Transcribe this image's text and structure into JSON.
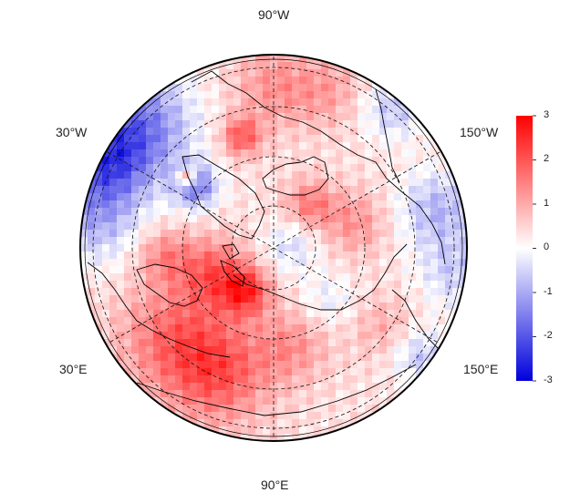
{
  "map": {
    "projection": "north polar stereographic",
    "longitude_labels": {
      "top": "90°W",
      "upper_left": "30°W",
      "upper_right": "150°W",
      "lower_left": "30°E",
      "lower_right": "150°E",
      "bottom": "90°E"
    },
    "graticule": "dashed",
    "anomaly_regions": [
      {
        "region": "Labrador Sea / Baffin Bay",
        "sign": "negative",
        "intensity": "strong"
      },
      {
        "region": "North Atlantic east of Greenland",
        "sign": "negative",
        "intensity": "moderate"
      },
      {
        "region": "Northwest Greenland coast",
        "sign": "positive",
        "intensity": "strong"
      },
      {
        "region": "Barents-Kara Sea",
        "sign": "positive",
        "intensity": "moderate"
      },
      {
        "region": "Western Siberia",
        "sign": "positive",
        "intensity": "moderate"
      },
      {
        "region": "Alaska / Bering Sea",
        "sign": "negative",
        "intensity": "weak"
      },
      {
        "region": "Canadian Arctic",
        "sign": "positive",
        "intensity": "weak"
      }
    ]
  },
  "colorbar": {
    "min": -3,
    "max": 3,
    "tick_labels": [
      "3",
      "2",
      "1",
      "0",
      "-1",
      "-2",
      "-3"
    ],
    "colors": {
      "high": "#ff0000",
      "mid": "#ffffff",
      "low": "#0000dd"
    }
  }
}
